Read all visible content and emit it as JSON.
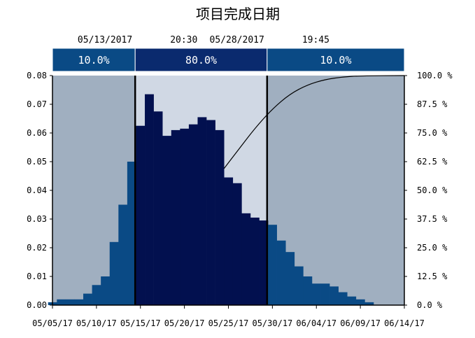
{
  "chart_data": {
    "type": "bar",
    "title": "项目完成日期",
    "certainty_markers": [
      {
        "date_label": "05/13/2017",
        "time_label": "20:30"
      },
      {
        "date_label": "05/28/2017",
        "time_label": "19:45"
      }
    ],
    "bands": [
      {
        "label": "10.0%",
        "from": -0.5,
        "to": 9.4,
        "color": "#0a4a85",
        "shade": "#a0afc0"
      },
      {
        "label": "80.0%",
        "from": 9.4,
        "to": 24.4,
        "color": "#0a2a6e",
        "shade": "#d0d8e4"
      },
      {
        "label": "10.0%",
        "from": 24.4,
        "to": 40.0,
        "color": "#0a4a85",
        "shade": "#a0afc0"
      }
    ],
    "x_tick_labels": [
      "05/05/17",
      "05/10/17",
      "05/15/17",
      "05/20/17",
      "05/25/17",
      "05/30/17",
      "06/04/17",
      "06/09/17",
      "06/14/17"
    ],
    "x_tick_positions": [
      0,
      5,
      10,
      15,
      20,
      25,
      30,
      35,
      40
    ],
    "x_range": [
      0,
      40
    ],
    "y_left_ticks": [
      "0.00",
      "0.01",
      "0.02",
      "0.03",
      "0.04",
      "0.05",
      "0.06",
      "0.07",
      "0.08"
    ],
    "y_left_range": [
      0,
      0.08
    ],
    "y_right_ticks": [
      "0.0 %",
      "12.5 %",
      "25.0 %",
      "37.5 %",
      "50.0 %",
      "62.5 %",
      "75.0 %",
      "87.5 %",
      "100.0 %"
    ],
    "y_right_range": [
      0,
      100
    ],
    "bar_color_outer": "#0a4a85",
    "bar_color_inner": "#02104f",
    "bars": [
      {
        "x": 0,
        "value": 0.001
      },
      {
        "x": 1,
        "value": 0.002
      },
      {
        "x": 2,
        "value": 0.002
      },
      {
        "x": 3,
        "value": 0.002
      },
      {
        "x": 4,
        "value": 0.004
      },
      {
        "x": 5,
        "value": 0.007
      },
      {
        "x": 6,
        "value": 0.01
      },
      {
        "x": 7,
        "value": 0.022
      },
      {
        "x": 8,
        "value": 0.035
      },
      {
        "x": 9,
        "value": 0.05
      },
      {
        "x": 10,
        "value": 0.0625
      },
      {
        "x": 11,
        "value": 0.0735
      },
      {
        "x": 12,
        "value": 0.0675
      },
      {
        "x": 13,
        "value": 0.059
      },
      {
        "x": 14,
        "value": 0.061
      },
      {
        "x": 15,
        "value": 0.0615
      },
      {
        "x": 16,
        "value": 0.063
      },
      {
        "x": 17,
        "value": 0.0655
      },
      {
        "x": 18,
        "value": 0.0645
      },
      {
        "x": 19,
        "value": 0.061
      },
      {
        "x": 20,
        "value": 0.0445
      },
      {
        "x": 21,
        "value": 0.0425
      },
      {
        "x": 22,
        "value": 0.032
      },
      {
        "x": 23,
        "value": 0.0305
      },
      {
        "x": 24,
        "value": 0.0295
      },
      {
        "x": 25,
        "value": 0.028
      },
      {
        "x": 26,
        "value": 0.0225
      },
      {
        "x": 27,
        "value": 0.0185
      },
      {
        "x": 28,
        "value": 0.0135
      },
      {
        "x": 29,
        "value": 0.01
      },
      {
        "x": 30,
        "value": 0.0075
      },
      {
        "x": 31,
        "value": 0.0075
      },
      {
        "x": 32,
        "value": 0.0065
      },
      {
        "x": 33,
        "value": 0.0045
      },
      {
        "x": 34,
        "value": 0.003
      },
      {
        "x": 35,
        "value": 0.002
      },
      {
        "x": 36,
        "value": 0.001
      }
    ],
    "cumulative_line": [
      {
        "x": 19.5,
        "y": 59.5
      },
      {
        "x": 21,
        "y": 67
      },
      {
        "x": 23,
        "y": 77
      },
      {
        "x": 25,
        "y": 85.5
      },
      {
        "x": 27,
        "y": 92
      },
      {
        "x": 29,
        "y": 96
      },
      {
        "x": 31,
        "y": 98.3
      },
      {
        "x": 33,
        "y": 99.4
      },
      {
        "x": 35,
        "y": 99.9
      },
      {
        "x": 40,
        "y": 100
      }
    ]
  }
}
